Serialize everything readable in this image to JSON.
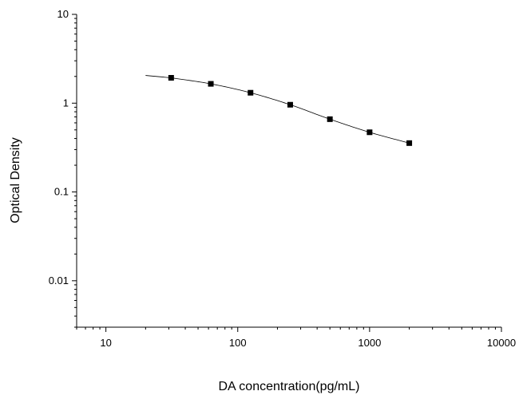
{
  "chart_data": {
    "type": "scatter",
    "title": "",
    "xlabel": "DA concentration(pg/mL)",
    "ylabel": "Optical Density",
    "x_scale": "log",
    "y_scale": "log",
    "xlim": [
      6,
      10000
    ],
    "ylim": [
      0.003,
      10
    ],
    "x_ticks": [
      10,
      100,
      1000,
      10000
    ],
    "x_tick_labels": [
      "10",
      "100",
      "1000",
      "10000"
    ],
    "y_ticks": [
      0.01,
      0.1,
      1,
      10
    ],
    "y_tick_labels": [
      "0.01",
      "0.1",
      "1",
      "10"
    ],
    "grid": false,
    "legend": "none",
    "series": [
      {
        "marker": "square",
        "color": "#000000",
        "x": [
          31.25,
          62.5,
          125,
          250,
          500,
          1000,
          2000
        ],
        "y": [
          1.93,
          1.65,
          1.31,
          0.96,
          0.66,
          0.47,
          0.355
        ]
      }
    ],
    "fit_curve": {
      "style": "line",
      "color": "#000000",
      "x_range": [
        20,
        2000
      ],
      "model": "four-parameter logistic"
    }
  }
}
